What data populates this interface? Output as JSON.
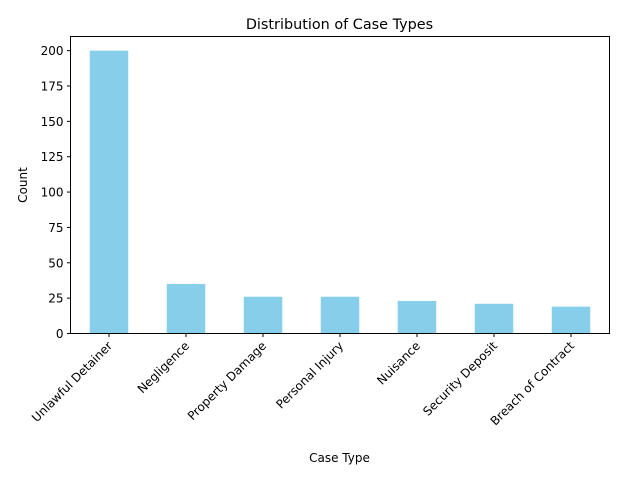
{
  "chart_data": {
    "type": "bar",
    "title": "Distribution of Case Types",
    "xlabel": "Case Type",
    "ylabel": "Count",
    "categories": [
      "Unlawful Detainer",
      "Negligence",
      "Property Damage",
      "Personal Injury",
      "Nuisance",
      "Security Deposit",
      "Breach of Contract"
    ],
    "values": [
      200,
      35,
      26,
      26,
      23,
      21,
      19
    ],
    "ylim": [
      0,
      210
    ],
    "yticks": [
      0,
      25,
      50,
      75,
      100,
      125,
      150,
      175,
      200
    ],
    "bar_color": "#87ceeb",
    "xtick_rotation": "45 degrees",
    "grid": false,
    "legend": "none"
  }
}
